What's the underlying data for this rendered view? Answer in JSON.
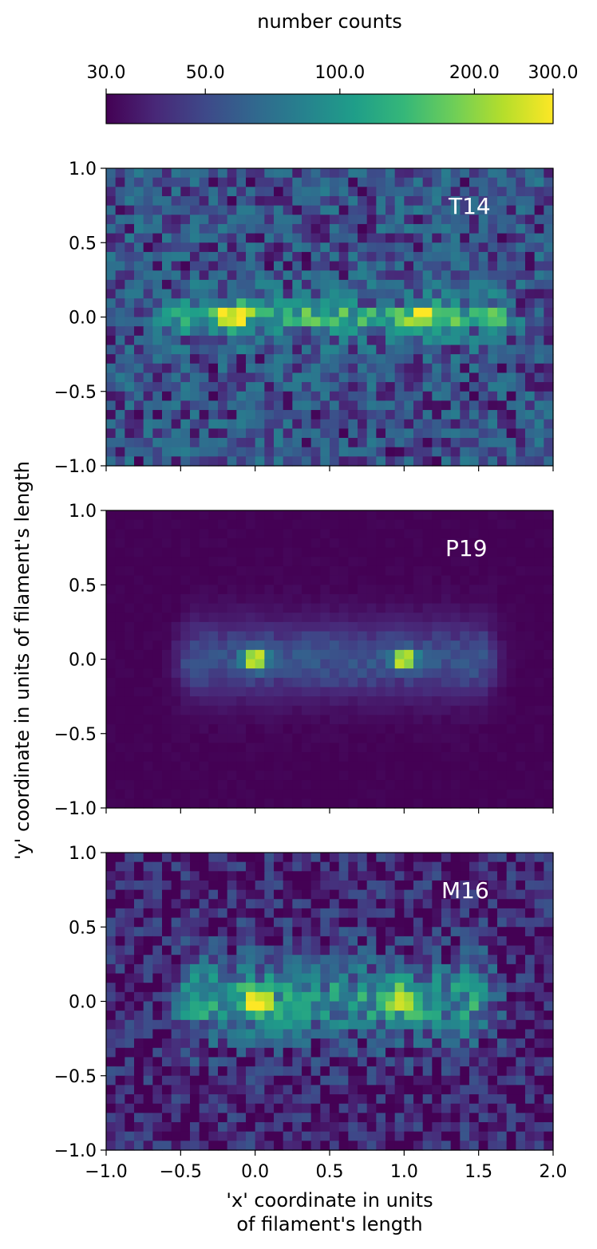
{
  "chart_data": [
    {
      "type": "heatmap",
      "panel": "T14",
      "xlim": [
        -1.0,
        2.0
      ],
      "ylim": [
        -1.0,
        1.0
      ],
      "grid": false,
      "scale": "log",
      "peaks": [
        {
          "x": -0.15,
          "y": 0.0,
          "value": 250
        },
        {
          "x": 1.15,
          "y": 0.0,
          "value": 230
        }
      ],
      "ridge": {
        "x_range": [
          -0.5,
          1.6
        ],
        "y": 0.0,
        "value": 140
      },
      "background_value": 55
    },
    {
      "type": "heatmap",
      "panel": "P19",
      "xlim": [
        -1.0,
        2.0
      ],
      "ylim": [
        -1.0,
        1.0
      ],
      "grid": false,
      "scale": "log",
      "peaks": [
        {
          "x": 0.0,
          "y": 0.0,
          "value": 300
        },
        {
          "x": 1.0,
          "y": 0.0,
          "value": 300
        }
      ],
      "ridge": {
        "x_range": [
          -0.4,
          1.5
        ],
        "y": 0.0,
        "value": 45
      },
      "background_value": 30
    },
    {
      "type": "heatmap",
      "panel": "M16",
      "xlim": [
        -1.0,
        2.0
      ],
      "ylim": [
        -1.0,
        1.0
      ],
      "grid": false,
      "scale": "log",
      "peaks": [
        {
          "x": 0.0,
          "y": 0.0,
          "value": 300
        },
        {
          "x": 1.0,
          "y": 0.0,
          "value": 300
        }
      ],
      "ridge": {
        "x_range": [
          -0.4,
          1.5
        ],
        "y": 0.0,
        "value": 75
      },
      "background_value": 38
    }
  ],
  "colorbar": {
    "label": "number counts",
    "ticks": [
      30.0,
      50.0,
      100.0,
      200.0,
      300.0
    ],
    "tick_labels": [
      "30.0",
      "50.0",
      "100.0",
      "200.0",
      "300.0"
    ],
    "range": [
      30,
      300
    ],
    "scale": "log",
    "colormap": "viridis",
    "colors": [
      "#440154",
      "#482878",
      "#3e4989",
      "#31688e",
      "#26828e",
      "#1f9e89",
      "#35b779",
      "#6ece58",
      "#b5de2b",
      "#fde725"
    ]
  },
  "axes": {
    "x_ticks": [
      -1.0,
      -0.5,
      0.0,
      0.5,
      1.0,
      1.5,
      2.0
    ],
    "x_tick_labels": [
      "−1.0",
      "−0.5",
      "0.0",
      "0.5",
      "1.0",
      "1.5",
      "2.0"
    ],
    "y_ticks": [
      1.0,
      0.5,
      0.0,
      -0.5,
      -1.0
    ],
    "y_tick_labels": [
      "1.0",
      "0.5",
      "0.0",
      "−0.5",
      "−1.0"
    ],
    "xlabel_line1": "'x' coordinate in units",
    "xlabel_line2": "of filament's length",
    "ylabel": "'y' coordinate in units of filament's length"
  },
  "panel_labels": [
    "T14",
    "P19",
    "M16"
  ]
}
